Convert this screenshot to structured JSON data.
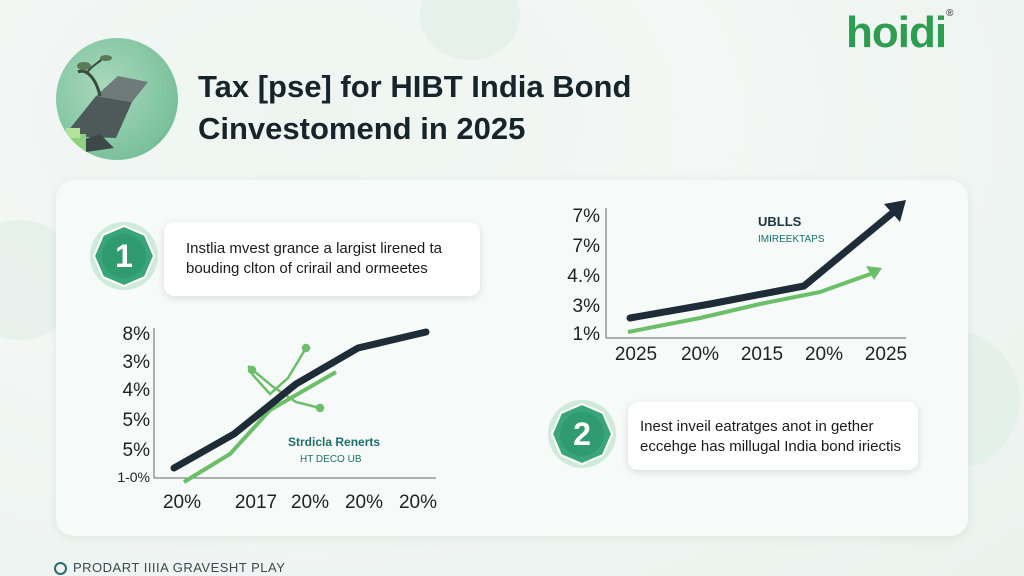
{
  "brand": {
    "logo_text": "hoidi",
    "logo_mark": "®"
  },
  "header": {
    "title_line1": "Tax [pse] for HIBT India Bond",
    "title_line2": "Cinvestomend in 2025"
  },
  "callouts": [
    {
      "badge": "1",
      "text_line1": "Instlia mvest grance a largist lirened ta",
      "text_line2": "bouding clton of crirail and ormeetes"
    },
    {
      "badge": "2",
      "text_line1": "Inest inveil eatratges anot in gether",
      "text_line2": "eccehge has millugal India bond iriectis"
    }
  ],
  "left_chart": {
    "y_ticks": [
      "8%",
      "3%",
      "4%",
      "5%",
      "5%",
      "1-0%"
    ],
    "x_ticks": [
      "20%",
      "2017",
      "20%",
      "20%",
      "20%"
    ],
    "legend_title": "Strdicla Renerts",
    "legend_sub": "HT DECO UB"
  },
  "right_chart": {
    "y_ticks": [
      "7%",
      "7%",
      "4.%",
      "3%",
      "1%"
    ],
    "x_ticks": [
      "2025",
      "20%",
      "2015",
      "20%",
      "2025"
    ],
    "legend_title": "UBLLS",
    "legend_sub": "IMIREEKTAPS"
  },
  "footer": {
    "text": "PRODART IIIIA GRAVESHT PLAY"
  },
  "colors": {
    "dark_line": "#1d2c36",
    "green_line": "#6cbe6a",
    "badge_green": "#3aa57a",
    "accent_teal": "#1f6f6a",
    "logo_green": "#2e9d4f"
  },
  "icons": {
    "hero": "rocket-plant-illustration",
    "footer": "circle-icon"
  }
}
